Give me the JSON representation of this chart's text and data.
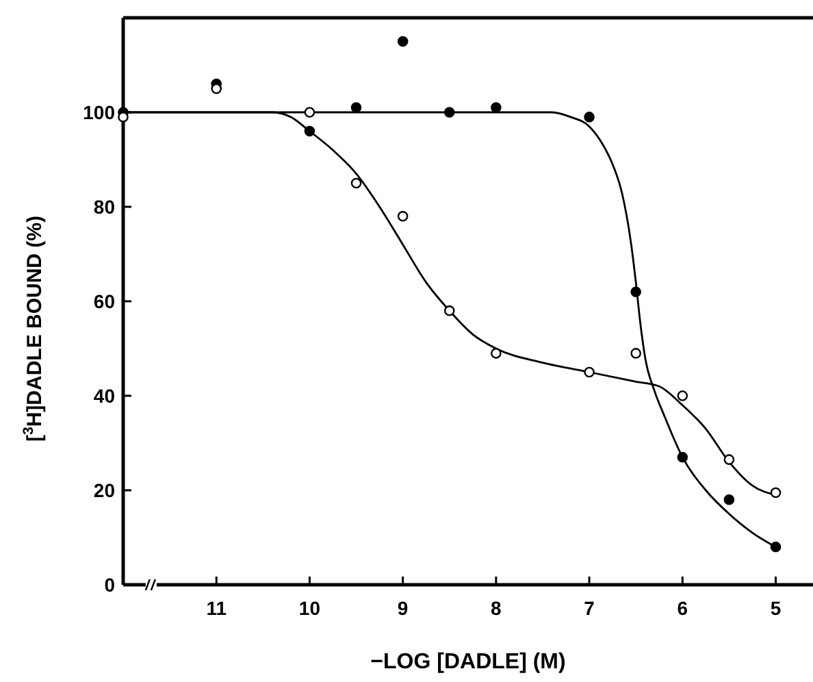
{
  "chart_data": {
    "type": "scatter",
    "xlabel": "−LOG [DADLE] (M)",
    "ylabel": "[$^{3}$H]DADLE BOUND  (%)",
    "xlim": [
      12,
      4.6
    ],
    "xticks": [
      11,
      10,
      9,
      8,
      7,
      6,
      5
    ],
    "ylim": [
      0,
      120
    ],
    "yticks": [
      0,
      20,
      40,
      60,
      80,
      100
    ],
    "grid": false,
    "series": [
      {
        "type": "line",
        "color": "#000000",
        "marker": "none",
        "line_style": "solid",
        "x": [
          12,
          11,
          10,
          9,
          8,
          7.6,
          7.4,
          7.2,
          7,
          6.85,
          6.75,
          6.65,
          6.55,
          6.5,
          6.45,
          6.4,
          6.3,
          6.2,
          6,
          5.75,
          5.5,
          5.25,
          5
        ],
        "values": [
          100,
          100,
          100,
          100,
          100,
          100,
          100,
          99,
          97,
          93,
          89,
          83,
          72,
          64,
          55,
          48,
          41,
          36,
          27,
          20,
          15,
          11,
          8
        ]
      },
      {
        "type": "line",
        "color": "#000000",
        "marker": "none",
        "line_style": "solid",
        "x": [
          12,
          11,
          10.6,
          10.4,
          10.2,
          10,
          9.75,
          9.5,
          9.25,
          9,
          8.75,
          8.5,
          8.25,
          8,
          7.5,
          7,
          6.5,
          6.25,
          6,
          5.75,
          5.5,
          5.25,
          5
        ],
        "values": [
          100,
          100,
          100,
          100,
          99,
          96,
          92,
          87,
          80,
          72,
          64,
          58,
          53,
          50,
          47,
          45,
          43,
          42,
          38,
          33,
          26,
          21,
          19
        ]
      },
      {
        "color": "#000000",
        "marker": "circle",
        "x": [
          12,
          11,
          10,
          9.5,
          9,
          8.5,
          8,
          7,
          6.5,
          6,
          5.5,
          5
        ],
        "values": [
          100,
          106,
          96,
          101,
          115,
          100,
          101,
          99,
          62,
          27,
          18,
          8
        ]
      },
      {
        "color": "#ffffff",
        "marker": "circle",
        "x": [
          12,
          11,
          10,
          9.5,
          9,
          8.5,
          8,
          7,
          6.5,
          6,
          5.5,
          5
        ],
        "values": [
          99,
          105,
          100,
          85,
          78,
          58,
          49,
          45,
          49,
          40,
          26.5,
          19.5
        ]
      }
    ]
  }
}
